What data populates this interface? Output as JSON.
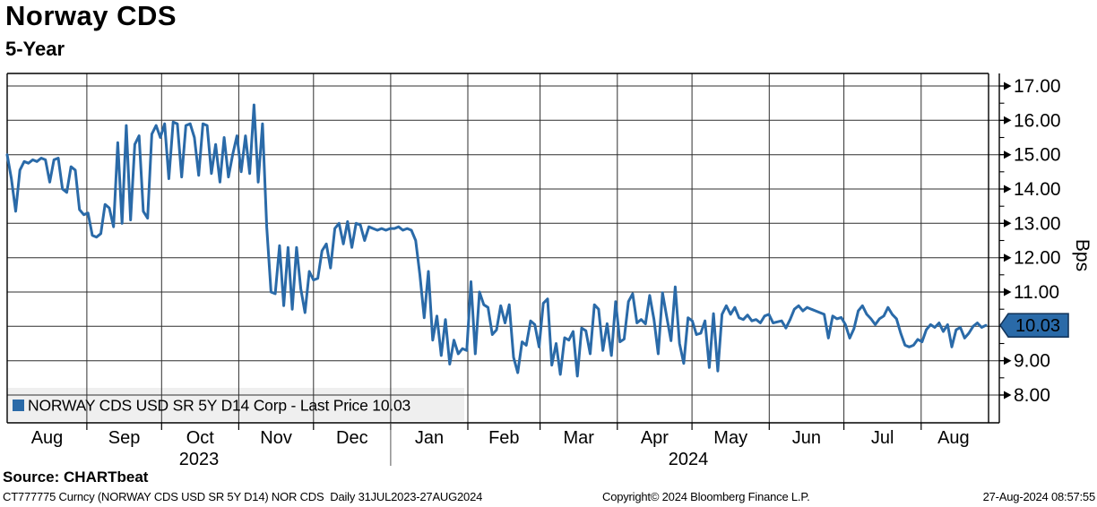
{
  "header": {
    "title": "Norway CDS",
    "subtitle": "5-Year"
  },
  "source_line": "Source: CHARTbeat",
  "footer": {
    "left": "CT777775 Curncy (NORWAY CDS USD SR 5Y D14) NOR CDS  Daily 31JUL2023-27AUG2024",
    "center": "Copyright© 2024 Bloomberg Finance L.P.",
    "right": "27-Aug-2024 08:57:55"
  },
  "colors": {
    "line": "#2a6aa8",
    "marker_fill": "#2a6aa8",
    "marker_border": "#14365c",
    "legend_bg": "#efefef",
    "grid": "#2f2f2f",
    "axis": "#000000"
  },
  "chart_data": {
    "type": "line",
    "title": "Norway CDS 5-Year",
    "ylabel": "Bps",
    "legend_label": "NORWAY CDS USD SR 5Y D14 Corp - Last Price 10.03",
    "legend_marker": "blue-square",
    "last_price": 10.03,
    "last_price_label": "10.03",
    "ylim": [
      8,
      17
    ],
    "grid": true,
    "legend_position": "bottom-left",
    "y_ticks": [
      {
        "value": 8,
        "label": "8.00"
      },
      {
        "value": 9,
        "label": "9.00"
      },
      {
        "value": 10,
        "label": "10.00"
      },
      {
        "value": 11,
        "label": "11.00"
      },
      {
        "value": 12,
        "label": "12.00"
      },
      {
        "value": 13,
        "label": "13.00"
      },
      {
        "value": 14,
        "label": "14.00"
      },
      {
        "value": 15,
        "label": "15.00"
      },
      {
        "value": 16,
        "label": "16.00"
      },
      {
        "value": 17,
        "label": "17.00"
      }
    ],
    "x_range_days": 393,
    "x_months": [
      {
        "label": "Aug",
        "start": 0,
        "end": 32
      },
      {
        "label": "Sep",
        "start": 32,
        "end": 62
      },
      {
        "label": "Oct",
        "start": 62,
        "end": 93
      },
      {
        "label": "Nov",
        "start": 93,
        "end": 123
      },
      {
        "label": "Dec",
        "start": 123,
        "end": 154
      },
      {
        "label": "Jan",
        "start": 154,
        "end": 185
      },
      {
        "label": "Feb",
        "start": 185,
        "end": 214
      },
      {
        "label": "Mar",
        "start": 214,
        "end": 245
      },
      {
        "label": "Apr",
        "start": 245,
        "end": 275
      },
      {
        "label": "May",
        "start": 275,
        "end": 306
      },
      {
        "label": "Jun",
        "start": 306,
        "end": 336
      },
      {
        "label": "Jul",
        "start": 336,
        "end": 367
      },
      {
        "label": "Aug",
        "start": 367,
        "end": 393
      }
    ],
    "x_years": [
      {
        "label": "2023",
        "start": 0,
        "end": 154
      },
      {
        "label": "2024",
        "start": 154,
        "end": 393
      }
    ],
    "date_range": "31JUL2023-27AUG2024",
    "values": [
      15.0,
      14.3,
      13.35,
      14.55,
      14.8,
      14.75,
      14.85,
      14.8,
      14.9,
      14.85,
      14.2,
      14.85,
      14.9,
      14.0,
      13.9,
      14.65,
      14.55,
      13.4,
      13.25,
      13.3,
      12.65,
      12.6,
      12.7,
      13.55,
      13.45,
      12.9,
      15.35,
      13.0,
      15.85,
      13.1,
      15.3,
      15.55,
      13.35,
      13.15,
      15.6,
      15.85,
      15.5,
      15.9,
      14.3,
      15.95,
      15.9,
      14.35,
      15.85,
      15.9,
      15.5,
      14.4,
      15.9,
      15.85,
      14.45,
      15.3,
      14.2,
      15.5,
      14.35,
      15.0,
      15.55,
      14.5,
      15.55,
      14.45,
      16.45,
      14.2,
      15.9,
      12.9,
      11.0,
      10.95,
      12.35,
      10.6,
      12.3,
      10.5,
      12.3,
      11.1,
      10.4,
      11.6,
      11.35,
      11.4,
      12.2,
      12.4,
      11.7,
      12.85,
      13.0,
      12.4,
      13.05,
      12.3,
      13.0,
      12.95,
      12.5,
      12.9,
      12.85,
      12.8,
      12.85,
      12.8,
      12.85,
      12.85,
      12.9,
      12.8,
      12.85,
      12.8,
      12.5,
      11.5,
      10.25,
      11.6,
      9.6,
      10.3,
      9.15,
      10.2,
      8.9,
      9.6,
      9.2,
      9.35,
      9.3,
      11.3,
      9.2,
      11.0,
      10.63,
      10.55,
      9.76,
      9.9,
      10.6,
      10.1,
      10.63,
      9.1,
      8.65,
      9.55,
      9.45,
      10.16,
      10.05,
      9.4,
      10.67,
      10.8,
      8.87,
      9.5,
      8.6,
      9.67,
      9.6,
      9.85,
      8.55,
      9.95,
      9.87,
      9.2,
      10.63,
      10.5,
      9.3,
      10.08,
      9.15,
      10.72,
      9.55,
      9.63,
      10.72,
      10.95,
      10.1,
      10.2,
      10.07,
      10.9,
      10.2,
      9.2,
      10.98,
      10.28,
      9.58,
      11.15,
      9.5,
      8.92,
      10.25,
      10.16,
      9.76,
      9.8,
      10.16,
      8.8,
      10.37,
      8.7,
      10.35,
      10.6,
      10.35,
      10.55,
      10.25,
      10.2,
      10.33,
      10.16,
      10.2,
      10.1,
      10.3,
      10.35,
      10.1,
      10.13,
      10.16,
      9.95,
      10.2,
      10.5,
      10.6,
      10.45,
      10.55,
      10.5,
      10.45,
      10.4,
      10.35,
      9.66,
      10.3,
      10.22,
      10.26,
      10.05,
      9.66,
      9.93,
      10.45,
      10.6,
      10.35,
      10.22,
      10.05,
      10.22,
      10.3,
      10.55,
      10.35,
      10.22,
      9.8,
      9.45,
      9.4,
      9.45,
      9.62,
      9.55,
      9.9,
      10.05,
      9.97,
      10.1,
      9.85,
      10.05,
      9.4,
      9.9,
      9.97,
      9.66,
      9.8,
      10.0,
      10.1,
      9.97,
      10.03
    ]
  }
}
